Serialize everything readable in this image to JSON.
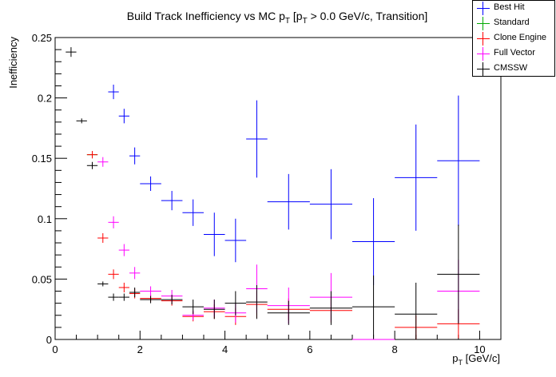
{
  "chart_data": {
    "type": "scatter",
    "title_main": "Build Track Inefficiency vs MC p",
    "title_sub": "T",
    "title_rest": " [p",
    "title_sub2": "T",
    "title_end": " > 0.0 GeV/c, Transition]",
    "xlabel_main": "p",
    "xlabel_sub": "T",
    "xlabel_rest": " [GeV/c]",
    "ylabel": "Inefficiency",
    "xlim": [
      0,
      10.5
    ],
    "ylim": [
      0,
      0.25
    ],
    "x_ticks": [
      "0",
      "2",
      "4",
      "6",
      "8",
      "10"
    ],
    "y_ticks": [
      "0",
      "0.05",
      "0.1",
      "0.15",
      "0.2",
      "0.25"
    ],
    "legend_position": "top-right",
    "series": [
      {
        "name": "Best Hit",
        "color": "#0000ff",
        "points": [
          {
            "x": 1.375,
            "xe": 0.125,
            "y": 0.205,
            "ye": 0.006
          },
          {
            "x": 1.625,
            "xe": 0.125,
            "y": 0.185,
            "ye": 0.006
          },
          {
            "x": 1.875,
            "xe": 0.125,
            "y": 0.152,
            "ye": 0.007
          },
          {
            "x": 2.25,
            "xe": 0.25,
            "y": 0.129,
            "ye": 0.006
          },
          {
            "x": 2.75,
            "xe": 0.25,
            "y": 0.115,
            "ye": 0.008
          },
          {
            "x": 3.25,
            "xe": 0.25,
            "y": 0.105,
            "ye": 0.011
          },
          {
            "x": 3.75,
            "xe": 0.25,
            "y": 0.087,
            "ye": 0.018
          },
          {
            "x": 4.25,
            "xe": 0.25,
            "y": 0.082,
            "ye": 0.018
          },
          {
            "x": 4.75,
            "xe": 0.25,
            "y": 0.166,
            "ye": 0.032
          },
          {
            "x": 5.5,
            "xe": 0.5,
            "y": 0.114,
            "ye": 0.023
          },
          {
            "x": 6.5,
            "xe": 0.5,
            "y": 0.112,
            "ye": 0.029
          },
          {
            "x": 7.5,
            "xe": 0.5,
            "y": 0.081,
            "ye": 0.036
          },
          {
            "x": 8.5,
            "xe": 0.5,
            "y": 0.134,
            "ye": 0.044
          },
          {
            "x": 9.5,
            "xe": 0.5,
            "y": 0.148,
            "ye": 0.054
          }
        ]
      },
      {
        "name": "Standard",
        "color": "#00aa00",
        "points": [
          {
            "x": 0.875,
            "xe": 0.125,
            "y": 0.153,
            "ye": 0.003
          }
        ]
      },
      {
        "name": "Clone Engine",
        "color": "#ff0000",
        "points": [
          {
            "x": 0.875,
            "xe": 0.125,
            "y": 0.153,
            "ye": 0.003
          },
          {
            "x": 1.125,
            "xe": 0.125,
            "y": 0.084,
            "ye": 0.004
          },
          {
            "x": 1.375,
            "xe": 0.125,
            "y": 0.054,
            "ye": 0.004
          },
          {
            "x": 1.625,
            "xe": 0.125,
            "y": 0.043,
            "ye": 0.004
          },
          {
            "x": 1.875,
            "xe": 0.125,
            "y": 0.038,
            "ye": 0.004
          },
          {
            "x": 2.25,
            "xe": 0.25,
            "y": 0.034,
            "ye": 0.003
          },
          {
            "x": 2.75,
            "xe": 0.25,
            "y": 0.032,
            "ye": 0.004
          },
          {
            "x": 3.25,
            "xe": 0.25,
            "y": 0.019,
            "ye": 0.004
          },
          {
            "x": 3.75,
            "xe": 0.25,
            "y": 0.023,
            "ye": 0.006
          },
          {
            "x": 4.25,
            "xe": 0.25,
            "y": 0.019,
            "ye": 0.007
          },
          {
            "x": 4.75,
            "xe": 0.25,
            "y": 0.029,
            "ye": 0.011
          },
          {
            "x": 5.5,
            "xe": 0.5,
            "y": 0.025,
            "ye": 0.009
          },
          {
            "x": 6.5,
            "xe": 0.5,
            "y": 0.024,
            "ye": 0.01
          },
          {
            "x": 8.5,
            "xe": 0.5,
            "y": 0.01,
            "ye": 0.01
          },
          {
            "x": 9.5,
            "xe": 0.5,
            "y": 0.013,
            "ye": 0.012
          }
        ]
      },
      {
        "name": "Full Vector",
        "color": "#ff00ff",
        "points": [
          {
            "x": 1.125,
            "xe": 0.125,
            "y": 0.147,
            "ye": 0.004
          },
          {
            "x": 1.375,
            "xe": 0.125,
            "y": 0.097,
            "ye": 0.005
          },
          {
            "x": 1.625,
            "xe": 0.125,
            "y": 0.074,
            "ye": 0.005
          },
          {
            "x": 1.875,
            "xe": 0.125,
            "y": 0.055,
            "ye": 0.005
          },
          {
            "x": 2.25,
            "xe": 0.25,
            "y": 0.04,
            "ye": 0.004
          },
          {
            "x": 2.75,
            "xe": 0.25,
            "y": 0.036,
            "ye": 0.005
          },
          {
            "x": 3.25,
            "xe": 0.25,
            "y": 0.02,
            "ye": 0.004
          },
          {
            "x": 3.75,
            "xe": 0.25,
            "y": 0.026,
            "ye": 0.007
          },
          {
            "x": 4.25,
            "xe": 0.25,
            "y": 0.022,
            "ye": 0.008
          },
          {
            "x": 4.75,
            "xe": 0.25,
            "y": 0.042,
            "ye": 0.02
          },
          {
            "x": 5.5,
            "xe": 0.5,
            "y": 0.028,
            "ye": 0.015
          },
          {
            "x": 6.5,
            "xe": 0.5,
            "y": 0.035,
            "ye": 0.02
          },
          {
            "x": 7.5,
            "xe": 0.5,
            "y": 0.0,
            "ye": 0.0
          },
          {
            "x": 9.5,
            "xe": 0.5,
            "y": 0.04,
            "ye": 0.026
          }
        ]
      },
      {
        "name": "CMSSW",
        "color": "#000000",
        "points": [
          {
            "x": 0.375,
            "xe": 0.125,
            "y": 0.238,
            "ye": 0.004
          },
          {
            "x": 0.625,
            "xe": 0.125,
            "y": 0.181,
            "ye": 0.002
          },
          {
            "x": 0.875,
            "xe": 0.125,
            "y": 0.144,
            "ye": 0.003
          },
          {
            "x": 1.125,
            "xe": 0.125,
            "y": 0.046,
            "ye": 0.002
          },
          {
            "x": 1.375,
            "xe": 0.125,
            "y": 0.035,
            "ye": 0.003
          },
          {
            "x": 1.625,
            "xe": 0.125,
            "y": 0.035,
            "ye": 0.003
          },
          {
            "x": 1.875,
            "xe": 0.125,
            "y": 0.039,
            "ye": 0.004
          },
          {
            "x": 2.25,
            "xe": 0.25,
            "y": 0.033,
            "ye": 0.003
          },
          {
            "x": 2.75,
            "xe": 0.25,
            "y": 0.033,
            "ye": 0.004
          },
          {
            "x": 3.25,
            "xe": 0.25,
            "y": 0.027,
            "ye": 0.006
          },
          {
            "x": 3.75,
            "xe": 0.25,
            "y": 0.025,
            "ye": 0.008
          },
          {
            "x": 4.25,
            "xe": 0.25,
            "y": 0.03,
            "ye": 0.01
          },
          {
            "x": 4.75,
            "xe": 0.25,
            "y": 0.031,
            "ye": 0.014
          },
          {
            "x": 5.5,
            "xe": 0.5,
            "y": 0.022,
            "ye": 0.01
          },
          {
            "x": 6.5,
            "xe": 0.5,
            "y": 0.026,
            "ye": 0.014
          },
          {
            "x": 7.5,
            "xe": 0.5,
            "y": 0.027,
            "ye": 0.026
          },
          {
            "x": 8.5,
            "xe": 0.5,
            "y": 0.021,
            "ye": 0.026
          },
          {
            "x": 9.5,
            "xe": 0.5,
            "y": 0.054,
            "ye": 0.041
          }
        ]
      }
    ]
  }
}
